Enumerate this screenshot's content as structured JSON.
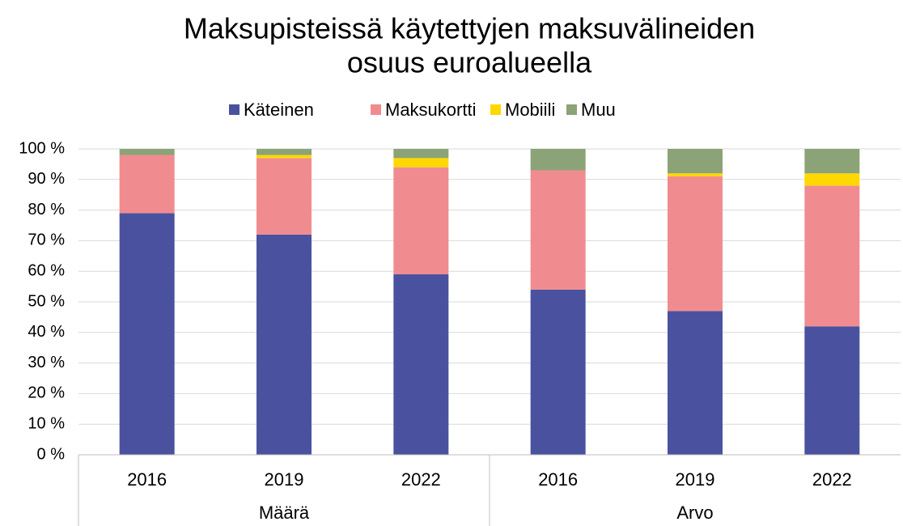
{
  "chart_data": {
    "type": "stacked_bar",
    "title": [
      "Maksupisteissä käytettyjen maksuvälineiden",
      "osuus euroalueella"
    ],
    "categories": [
      "2016",
      "2019",
      "2022",
      "2016",
      "2019",
      "2022"
    ],
    "groups": [
      {
        "label": "Määrä",
        "count": 3
      },
      {
        "label": "Arvo",
        "count": 3
      }
    ],
    "series": [
      {
        "name": "Käteinen",
        "color": "#4a529f",
        "values": [
          79,
          72,
          59,
          54,
          47,
          42
        ]
      },
      {
        "name": "Maksukortti",
        "color": "#f08c8f",
        "values": [
          19,
          25,
          35,
          39,
          44,
          46
        ]
      },
      {
        "name": "Mobiili",
        "color": "#ffd800",
        "values": [
          0,
          1,
          3,
          0,
          1,
          4
        ]
      },
      {
        "name": "Muu",
        "color": "#8ba377",
        "values": [
          2,
          2,
          3,
          7,
          8,
          8
        ]
      }
    ],
    "ylim": [
      0,
      100
    ],
    "yticks": [
      {
        "value": 0,
        "label": "0 %"
      },
      {
        "value": 10,
        "label": "10 %"
      },
      {
        "value": 20,
        "label": "20 %"
      },
      {
        "value": 30,
        "label": "30 %"
      },
      {
        "value": 40,
        "label": "40 %"
      },
      {
        "value": 50,
        "label": "50 %"
      },
      {
        "value": 60,
        "label": "60 %"
      },
      {
        "value": 70,
        "label": "70 %"
      },
      {
        "value": 80,
        "label": "80 %"
      },
      {
        "value": 90,
        "label": "90 %"
      },
      {
        "value": 100,
        "label": "100 %"
      }
    ],
    "grid": true,
    "legend": "top"
  }
}
